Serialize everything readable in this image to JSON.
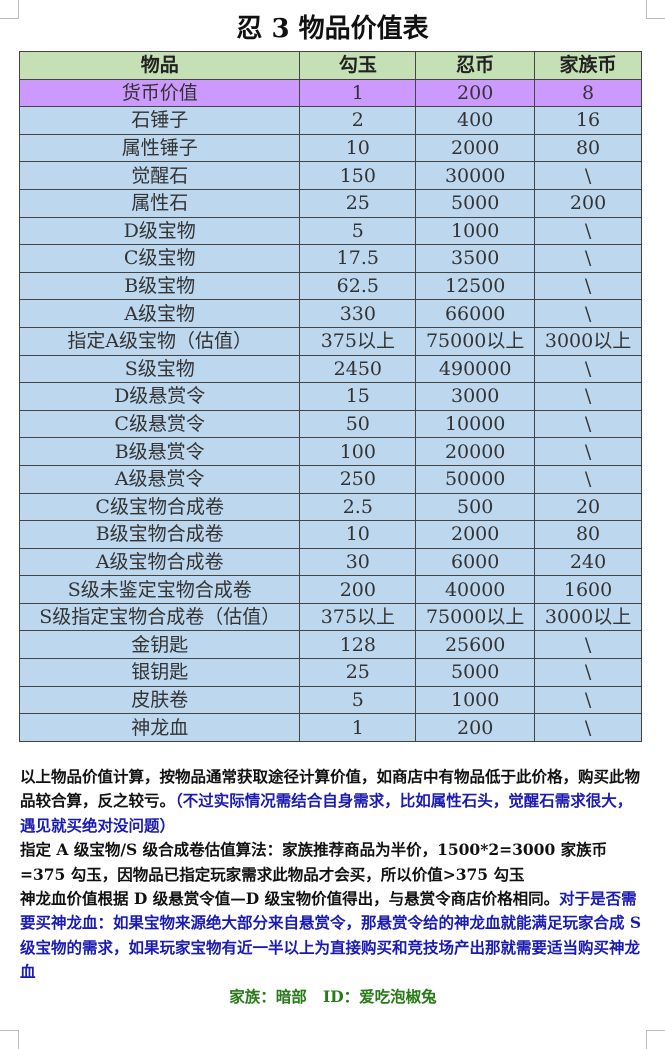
{
  "title": "忍 3 物品价值表",
  "table": {
    "headers": [
      "物品",
      "勾玉",
      "忍币",
      "家族币"
    ],
    "currency_row": [
      "货币价值",
      "1",
      "200",
      "8"
    ],
    "rows": [
      [
        "石锤子",
        "2",
        "400",
        "16"
      ],
      [
        "属性锤子",
        "10",
        "2000",
        "80"
      ],
      [
        "觉醒石",
        "150",
        "30000",
        "\\"
      ],
      [
        "属性石",
        "25",
        "5000",
        "200"
      ],
      [
        "D级宝物",
        "5",
        "1000",
        "\\"
      ],
      [
        "C级宝物",
        "17.5",
        "3500",
        "\\"
      ],
      [
        "B级宝物",
        "62.5",
        "12500",
        "\\"
      ],
      [
        "A级宝物",
        "330",
        "66000",
        "\\"
      ],
      [
        "指定A级宝物（估值）",
        "375以上",
        "75000以上",
        "3000以上"
      ],
      [
        "S级宝物",
        "2450",
        "490000",
        "\\"
      ],
      [
        "D级悬赏令",
        "15",
        "3000",
        "\\"
      ],
      [
        "C级悬赏令",
        "50",
        "10000",
        "\\"
      ],
      [
        "B级悬赏令",
        "100",
        "20000",
        "\\"
      ],
      [
        "A级悬赏令",
        "250",
        "50000",
        "\\"
      ],
      [
        "C级宝物合成卷",
        "2.5",
        "500",
        "20"
      ],
      [
        "B级宝物合成卷",
        "10",
        "2000",
        "80"
      ],
      [
        "A级宝物合成卷",
        "30",
        "6000",
        "240"
      ],
      [
        "S级未鉴定宝物合成卷",
        "200",
        "40000",
        "1600"
      ],
      [
        "S级指定宝物合成卷（估值）",
        "375以上",
        "75000以上",
        "3000以上"
      ],
      [
        "金钥匙",
        "128",
        "25600",
        "\\"
      ],
      [
        "银钥匙",
        "25",
        "5000",
        "\\"
      ],
      [
        "皮肤卷",
        "5",
        "1000",
        "\\"
      ],
      [
        "神龙血",
        "1",
        "200",
        "\\"
      ]
    ]
  },
  "notes": {
    "p1_black": "以上物品价值计算，按物品通常获取途径计算价值，如商店中有物品低于此价格，购买此物品较合算，反之较亏。",
    "p1_blue": "（不过实际情况需结合自身需求，比如属性石头，觉醒石需求很大，遇见就买绝对没问题）",
    "p2": "指定 A 级宝物/S 级合成卷估值算法：家族推荐商品为半价，1500*2=3000 家族币=375 勾玉，因物品已指定玩家需求此物品才会买，所以价值>375 勾玉",
    "p3_black": "神龙血价值根据 D 级悬赏令值—D 级宝物价值得出，与悬赏令商店价格相同。",
    "p3_blue": "对于是否需要买神龙血：如果宝物来源绝大部分来自悬赏令，那悬赏令给的神龙血就能满足玩家合成 S 级宝物的需求，如果玩家宝物有近一半以上为直接购买和竞技场产出那就需要适当购买神龙血",
    "footer": "家族：暗部   ID：爱吃泡椒兔"
  }
}
